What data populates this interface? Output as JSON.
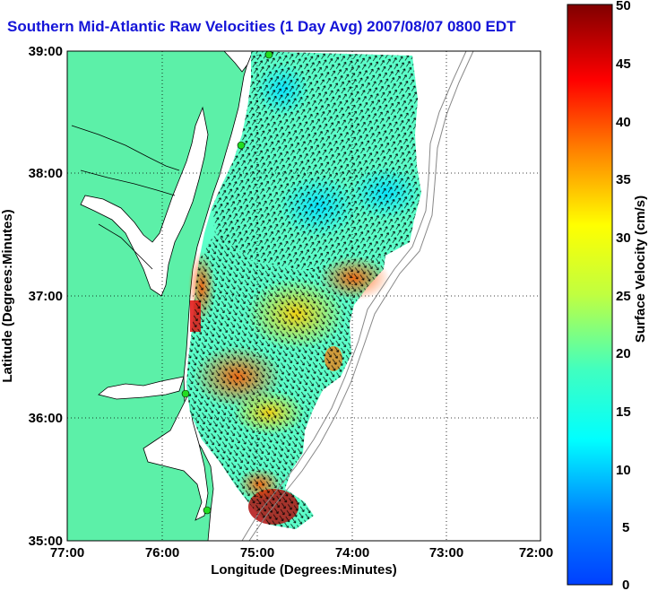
{
  "title": "Southern Mid-Atlantic Raw Velocities (1 Day Avg) 2007/08/07 0800 EDT",
  "map": {
    "xlabel": "Longitude (Degrees:Minutes)",
    "ylabel": "Latitude (Degrees:Minutes)",
    "x_ticks": [
      "77:00",
      "76:00",
      "75:00",
      "74:00",
      "73:00",
      "72:00"
    ],
    "y_ticks": [
      "39:00",
      "38:00",
      "37:00",
      "36:00",
      "35:00"
    ],
    "xlim": [
      -77,
      -72
    ],
    "ylim": [
      35,
      39
    ],
    "grid": "dotted"
  },
  "colorbar": {
    "label": "Surface Velocity (cm/s)",
    "ticks": [
      "50",
      "45",
      "40",
      "35",
      "30",
      "25",
      "20",
      "15",
      "10",
      "5",
      "0"
    ],
    "range": [
      0,
      50
    ],
    "colormap": "jet"
  },
  "colors": {
    "land": "#5cf0a8",
    "title": "#1414d8",
    "station": "#22dd22"
  },
  "chart_data": {
    "type": "heatmap",
    "title": "Southern Mid-Atlantic Raw Velocities (1 Day Avg) 2007/08/07 0800 EDT",
    "xlabel": "Longitude (Degrees:Minutes)",
    "ylabel": "Latitude (Degrees:Minutes)",
    "xlim": [
      -77,
      -72
    ],
    "ylim": [
      35,
      39
    ],
    "value_label": "Surface Velocity (cm/s)",
    "value_range": [
      0,
      50
    ],
    "stations": [
      {
        "lon": -74.9,
        "lat": 38.96
      },
      {
        "lon": -75.1,
        "lat": 38.22
      },
      {
        "lon": -75.7,
        "lat": 36.2
      },
      {
        "lon": -75.5,
        "lat": 35.25
      }
    ]
  }
}
